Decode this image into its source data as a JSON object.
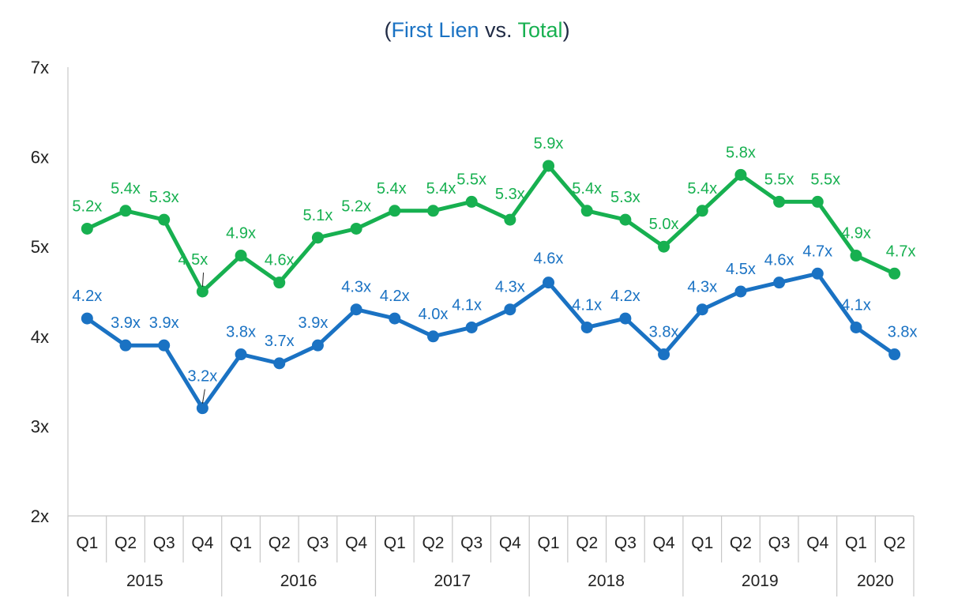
{
  "chart_data": {
    "type": "line",
    "title_parts": [
      {
        "text": "(",
        "color": "#1f2a44"
      },
      {
        "text": "First Lien",
        "color": "#1a72c3"
      },
      {
        "text": " vs. ",
        "color": "#1f2a44"
      },
      {
        "text": "Total",
        "color": "#17b050"
      },
      {
        "text": ")",
        "color": "#1f2a44"
      }
    ],
    "ylim": [
      2,
      7
    ],
    "yticks": [
      2,
      3,
      4,
      5,
      6,
      7
    ],
    "ytick_labels": [
      "2x",
      "3x",
      "4x",
      "5x",
      "6x",
      "7x"
    ],
    "categories": [
      "Q1",
      "Q2",
      "Q3",
      "Q4",
      "Q1",
      "Q2",
      "Q3",
      "Q4",
      "Q1",
      "Q2",
      "Q3",
      "Q4",
      "Q1",
      "Q2",
      "Q3",
      "Q4",
      "Q1",
      "Q2",
      "Q3",
      "Q4",
      "Q1",
      "Q2"
    ],
    "years": [
      {
        "label": "2015",
        "quarters": 4
      },
      {
        "label": "2016",
        "quarters": 4
      },
      {
        "label": "2017",
        "quarters": 4
      },
      {
        "label": "2018",
        "quarters": 4
      },
      {
        "label": "2019",
        "quarters": 4
      },
      {
        "label": "2020",
        "quarters": 2
      }
    ],
    "grid": false,
    "series": [
      {
        "key": "total",
        "color": "#17b050",
        "values": [
          5.2,
          5.4,
          5.3,
          4.5,
          4.9,
          4.6,
          5.1,
          5.2,
          5.4,
          5.4,
          5.5,
          5.3,
          5.9,
          5.4,
          5.3,
          5.0,
          5.4,
          5.8,
          5.5,
          5.5,
          4.9,
          4.7
        ],
        "labels": [
          "5.2x",
          "5.4x",
          "5.3x",
          "4.5x",
          "4.9x",
          "4.6x",
          "5.1x",
          "5.2x",
          "5.4x",
          "5.4x",
          "5.5x",
          "5.3x",
          "5.9x",
          "5.4x",
          "5.3x",
          "5.0x",
          "5.4x",
          "5.8x",
          "5.5x",
          "5.5x",
          "4.9x",
          "4.7x"
        ]
      },
      {
        "key": "first_lien",
        "color": "#1a72c3",
        "values": [
          4.2,
          3.9,
          3.9,
          3.2,
          3.8,
          3.7,
          3.9,
          4.3,
          4.2,
          4.0,
          4.1,
          4.3,
          4.6,
          4.1,
          4.2,
          3.8,
          4.3,
          4.5,
          4.6,
          4.7,
          4.1,
          3.8
        ],
        "labels": [
          "4.2x",
          "3.9x",
          "3.9x",
          "3.2x",
          "3.8x",
          "3.7x",
          "3.9x",
          "4.3x",
          "4.2x",
          "4.0x",
          "4.1x",
          "4.3x",
          "4.6x",
          "4.1x",
          "4.2x",
          "3.8x",
          "4.3x",
          "4.5x",
          "4.6x",
          "4.7x",
          "4.1x",
          "3.8x"
        ]
      }
    ]
  }
}
